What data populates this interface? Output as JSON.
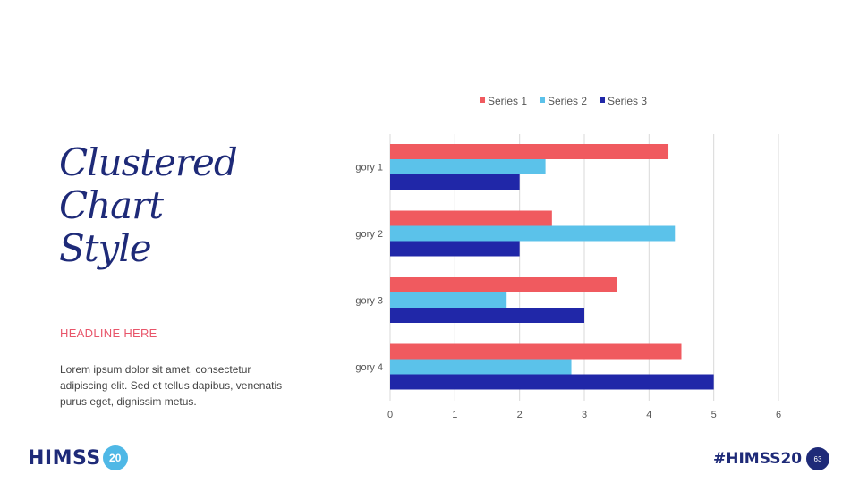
{
  "slide": {
    "title_lines": [
      "Clustered",
      "Chart",
      "Style"
    ],
    "headline": "HEADLINE HERE",
    "body": "Lorem ipsum dolor sit amet, consectetur adipiscing elit. Sed et tellus dapibus, venenatis purus eget, dignissim metus.",
    "logo_text": "HIMSS",
    "logo_badge": "20",
    "hashtag": "#HIMSS20",
    "page_number": "63"
  },
  "chart_data": {
    "type": "bar",
    "orientation": "horizontal",
    "categories": [
      "gory 1",
      "gory 2",
      "gory 3",
      "gory 4"
    ],
    "series": [
      {
        "name": "Series 1",
        "color": "#f05a5f",
        "values": [
          4.3,
          2.5,
          3.5,
          4.5
        ]
      },
      {
        "name": "Series 2",
        "color": "#5bc2ea",
        "values": [
          2.4,
          4.4,
          1.8,
          2.8
        ]
      },
      {
        "name": "Series 3",
        "color": "#2027a8",
        "values": [
          2.0,
          2.0,
          3.0,
          5.0
        ]
      }
    ],
    "x_ticks": [
      "0",
      "1",
      "2",
      "3",
      "4",
      "5",
      "6"
    ],
    "xlim": [
      0,
      6
    ],
    "legend": "top",
    "grid": true
  }
}
